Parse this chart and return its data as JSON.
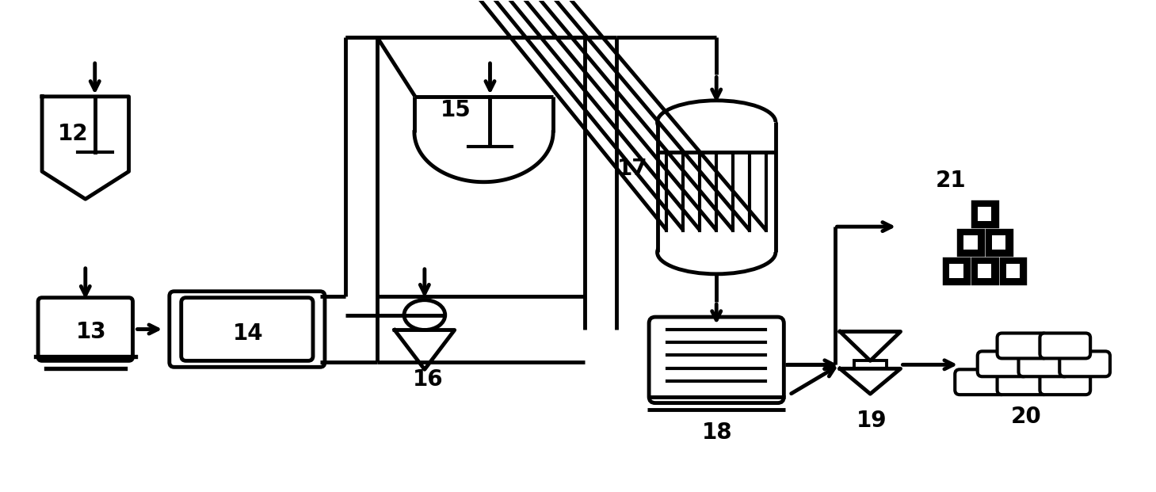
{
  "bg_color": "#ffffff",
  "lc": "#000000",
  "lw": 3.5,
  "figsize": [
    14.59,
    6.21
  ],
  "dpi": 100
}
